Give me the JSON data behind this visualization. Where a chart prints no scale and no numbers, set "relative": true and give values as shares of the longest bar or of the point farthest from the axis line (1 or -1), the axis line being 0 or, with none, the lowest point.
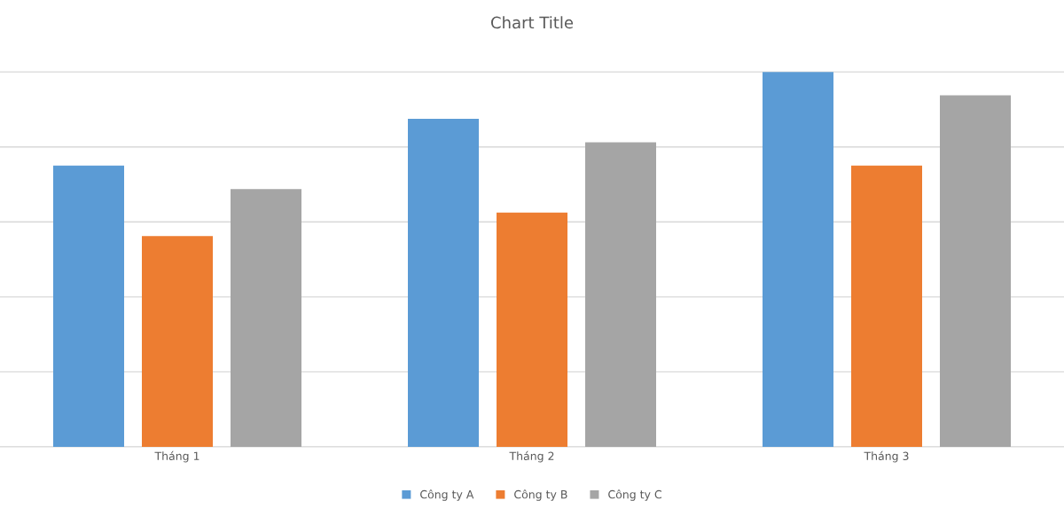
{
  "chart_data": {
    "type": "bar",
    "title": "Chart Title",
    "relative": true,
    "categories": [
      "Tháng 1",
      "Tháng 2",
      "Tháng 3"
    ],
    "series": [
      {
        "name": "Công ty A",
        "color": "#5b9bd5",
        "values": [
          0.75,
          0.875,
          1
        ]
      },
      {
        "name": "Công ty B",
        "color": "#ed7d31",
        "values": [
          0.5625,
          0.625,
          0.75
        ]
      },
      {
        "name": "Công ty C",
        "color": "#a5a5a5",
        "values": [
          0.6875,
          0.8125,
          0.9375
        ]
      }
    ],
    "grid": "y",
    "legend": "bottom"
  }
}
